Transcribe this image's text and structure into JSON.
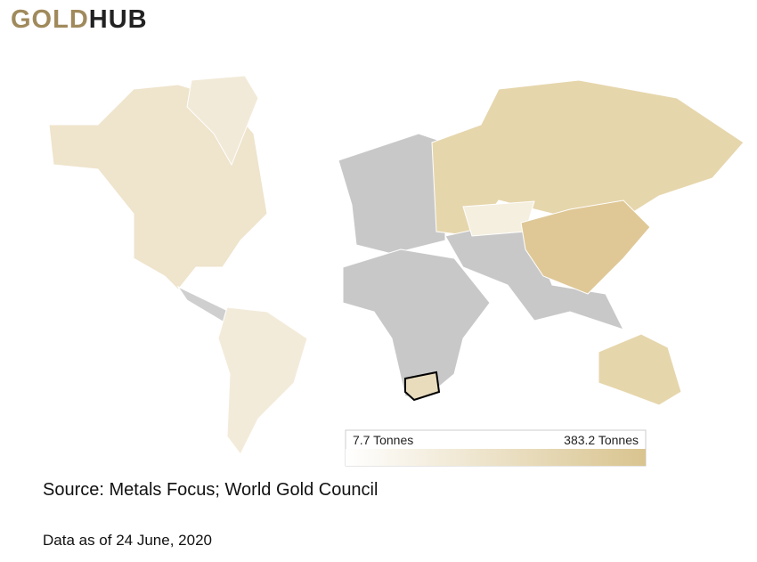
{
  "header": {
    "logo_gold": "GOLD",
    "logo_hub": "HUB"
  },
  "legend": {
    "min": {
      "value": 7.7,
      "label": "7.7 Tonnes"
    },
    "max": {
      "value": 383.2,
      "label": "383.2 Tonnes"
    },
    "color_min": "#ffffff",
    "color_max": "#d9c48f"
  },
  "footer": {
    "source": "Source: Metals Focus; World Gold Council",
    "date": "Data as of 24 June, 2020"
  }
}
